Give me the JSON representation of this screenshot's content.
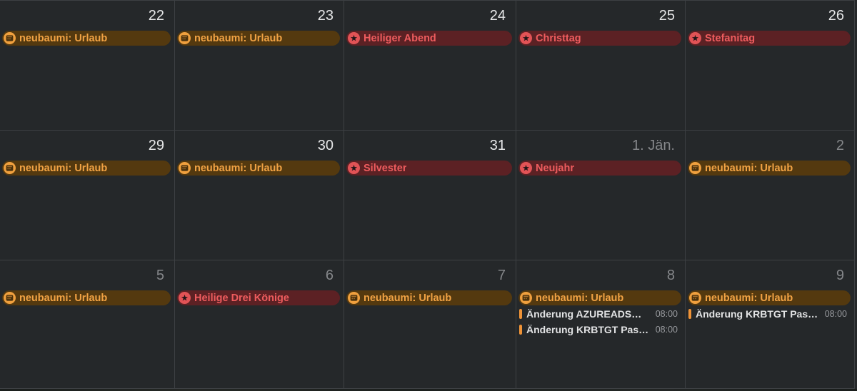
{
  "colors": {
    "background": "#25282a",
    "grid_line": "#3d4043",
    "date_current": "#e6e7e8",
    "date_other_month": "#85878a",
    "work_pill_bg": "#54390f",
    "work_pill_text": "#f2a344",
    "work_icon_bg": "#f0a03e",
    "work_icon_glyph": "#4a310c",
    "holiday_pill_bg": "#5c2124",
    "holiday_pill_text": "#ee5c5e",
    "holiday_icon_bg": "#e25356",
    "holiday_icon_glyph": "#221417",
    "timed_bar": "#ef9337",
    "timed_title": "#e2e3e4",
    "timed_time": "#96989c"
  },
  "icons": {
    "work_event_icon": "calendar-icon",
    "holiday_event_icon": "star-icon",
    "star_glyph": "★"
  },
  "weeks": [
    [
      {
        "date": "22",
        "other_month": false,
        "events": [
          {
            "kind": "work",
            "title": "neubaumi: Urlaub"
          }
        ]
      },
      {
        "date": "23",
        "other_month": false,
        "events": [
          {
            "kind": "work",
            "title": "neubaumi: Urlaub"
          }
        ]
      },
      {
        "date": "24",
        "other_month": false,
        "events": [
          {
            "kind": "holiday",
            "title": "Heiliger Abend"
          }
        ]
      },
      {
        "date": "25",
        "other_month": false,
        "events": [
          {
            "kind": "holiday",
            "title": "Christtag"
          }
        ]
      },
      {
        "date": "26",
        "other_month": false,
        "events": [
          {
            "kind": "holiday",
            "title": "Stefanitag"
          }
        ]
      }
    ],
    [
      {
        "date": "29",
        "other_month": false,
        "events": [
          {
            "kind": "work",
            "title": "neubaumi: Urlaub"
          }
        ]
      },
      {
        "date": "30",
        "other_month": false,
        "events": [
          {
            "kind": "work",
            "title": "neubaumi: Urlaub"
          }
        ]
      },
      {
        "date": "31",
        "other_month": false,
        "events": [
          {
            "kind": "holiday",
            "title": "Silvester"
          }
        ]
      },
      {
        "date": "1. Jän.",
        "other_month": true,
        "events": [
          {
            "kind": "holiday",
            "title": "Neujahr"
          }
        ]
      },
      {
        "date": "2",
        "other_month": true,
        "events": [
          {
            "kind": "work",
            "title": "neubaumi: Urlaub"
          }
        ]
      }
    ],
    [
      {
        "date": "5",
        "other_month": true,
        "events": [
          {
            "kind": "work",
            "title": "neubaumi: Urlaub"
          }
        ]
      },
      {
        "date": "6",
        "other_month": true,
        "events": [
          {
            "kind": "holiday",
            "title": "Heilige Drei Könige"
          }
        ]
      },
      {
        "date": "7",
        "other_month": true,
        "events": [
          {
            "kind": "work",
            "title": "neubaumi: Urlaub"
          }
        ]
      },
      {
        "date": "8",
        "other_month": true,
        "events": [
          {
            "kind": "work",
            "title": "neubaumi: Urlaub"
          },
          {
            "kind": "timed",
            "title": "Änderung AZUREADS…",
            "time": "08:00"
          },
          {
            "kind": "timed",
            "title": "Änderung KRBTGT Pas…",
            "time": "08:00"
          }
        ]
      },
      {
        "date": "9",
        "other_month": true,
        "events": [
          {
            "kind": "work",
            "title": "neubaumi: Urlaub"
          },
          {
            "kind": "timed",
            "title": "Änderung KRBTGT Pas…",
            "time": "08:00"
          }
        ]
      }
    ]
  ]
}
